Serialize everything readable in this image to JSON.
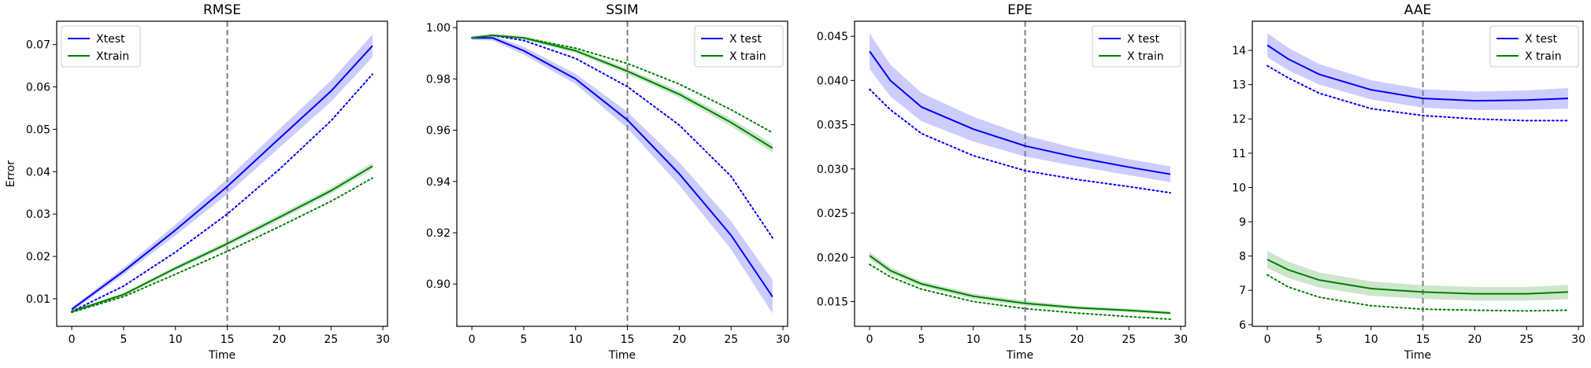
{
  "chart_data": [
    {
      "type": "line",
      "title": "RMSE",
      "xlabel": "Time",
      "ylabel": "Error",
      "xlim": [
        -1.45,
        30.45
      ],
      "ylim": [
        0.0035,
        0.0755
      ],
      "xticks": [
        0,
        5,
        10,
        15,
        20,
        25,
        30
      ],
      "yticks": [
        0.01,
        0.02,
        0.03,
        0.04,
        0.05,
        0.06,
        0.07
      ],
      "ytick_labels": [
        "0.01",
        "0.02",
        "0.03",
        "0.04",
        "0.05",
        "0.06",
        "0.07"
      ],
      "vline": 15,
      "legend_position": "upper-left",
      "legend": [
        {
          "label": "Xtest",
          "color": "#0000ff"
        },
        {
          "label": "Xtrain",
          "color": "#008000"
        }
      ],
      "x": [
        0,
        5,
        10,
        15,
        20,
        25,
        29
      ],
      "series": [
        {
          "style": "solid",
          "color": "#0000ff",
          "values": [
            0.0075,
            0.0165,
            0.0262,
            0.0365,
            0.0478,
            0.059,
            0.0697
          ],
          "band": [
            0.0005,
            0.0008,
            0.0013,
            0.0018,
            0.0022,
            0.0025,
            0.0027
          ]
        },
        {
          "style": "dotted",
          "color": "#0000ff",
          "values": [
            0.007,
            0.013,
            0.021,
            0.03,
            0.0405,
            0.052,
            0.063
          ]
        },
        {
          "style": "solid",
          "color": "#008000",
          "values": [
            0.007,
            0.011,
            0.0172,
            0.023,
            0.0292,
            0.0355,
            0.0413
          ],
          "band": [
            0.0003,
            0.0004,
            0.0005,
            0.0006,
            0.0007,
            0.0007,
            0.0008
          ]
        },
        {
          "style": "dotted",
          "color": "#008000",
          "values": [
            0.0068,
            0.0105,
            0.0158,
            0.0212,
            0.027,
            0.033,
            0.0385
          ]
        }
      ]
    },
    {
      "type": "line",
      "title": "SSIM",
      "xlabel": "Time",
      "ylabel": "",
      "xlim": [
        -1.45,
        30.45
      ],
      "ylim": [
        0.8835,
        1.0025
      ],
      "xticks": [
        0,
        5,
        10,
        15,
        20,
        25,
        30
      ],
      "yticks": [
        0.9,
        0.92,
        0.94,
        0.96,
        0.98,
        1.0
      ],
      "ytick_labels": [
        "0.90",
        "0.92",
        "0.94",
        "0.96",
        "0.98",
        "1.00"
      ],
      "vline": 15,
      "legend_position": "upper-right",
      "legend": [
        {
          "label": "X test",
          "color": "#0000ff"
        },
        {
          "label": "X train",
          "color": "#008000"
        }
      ],
      "x": [
        0,
        2,
        5,
        10,
        15,
        20,
        25,
        29
      ],
      "series": [
        {
          "style": "solid",
          "color": "#0000ff",
          "values": [
            0.996,
            0.996,
            0.991,
            0.98,
            0.964,
            0.943,
            0.919,
            0.895
          ],
          "band": [
            0.0008,
            0.001,
            0.0015,
            0.002,
            0.0032,
            0.0045,
            0.0055,
            0.0065
          ]
        },
        {
          "style": "dotted",
          "color": "#0000ff",
          "values": [
            0.996,
            0.997,
            0.995,
            0.988,
            0.977,
            0.962,
            0.942,
            0.918
          ]
        },
        {
          "style": "solid",
          "color": "#008000",
          "values": [
            0.996,
            0.997,
            0.996,
            0.991,
            0.983,
            0.974,
            0.963,
            0.953
          ],
          "band": [
            0.0005,
            0.0005,
            0.0007,
            0.0009,
            0.0011,
            0.0013,
            0.0015,
            0.0017
          ]
        },
        {
          "style": "dotted",
          "color": "#008000",
          "values": [
            0.996,
            0.997,
            0.996,
            0.992,
            0.986,
            0.978,
            0.968,
            0.959
          ]
        }
      ]
    },
    {
      "type": "line",
      "title": "EPE",
      "xlabel": "Time",
      "ylabel": "",
      "xlim": [
        -1.45,
        30.45
      ],
      "ylim": [
        0.0122,
        0.0467
      ],
      "xticks": [
        0,
        5,
        10,
        15,
        20,
        25,
        30
      ],
      "yticks": [
        0.015,
        0.02,
        0.025,
        0.03,
        0.035,
        0.04,
        0.045
      ],
      "ytick_labels": [
        "0.015",
        "0.020",
        "0.025",
        "0.030",
        "0.035",
        "0.040",
        "0.045"
      ],
      "vline": 15,
      "legend_position": "upper-right",
      "legend": [
        {
          "label": "X test",
          "color": "#0000ff"
        },
        {
          "label": "X train",
          "color": "#008000"
        }
      ],
      "x": [
        0,
        2,
        5,
        10,
        15,
        20,
        25,
        29
      ],
      "series": [
        {
          "style": "solid",
          "color": "#0000ff",
          "values": [
            0.0433,
            0.04,
            0.037,
            0.0345,
            0.0326,
            0.0313,
            0.0302,
            0.0294
          ],
          "band": [
            0.002,
            0.0018,
            0.0016,
            0.0014,
            0.0012,
            0.001,
            0.0009,
            0.0009
          ]
        },
        {
          "style": "dotted",
          "color": "#0000ff",
          "values": [
            0.039,
            0.0367,
            0.034,
            0.0315,
            0.0298,
            0.0288,
            0.028,
            0.0273
          ]
        },
        {
          "style": "solid",
          "color": "#008000",
          "values": [
            0.0202,
            0.0185,
            0.017,
            0.0156,
            0.0148,
            0.0143,
            0.014,
            0.0137
          ],
          "band": [
            0.0004,
            0.0004,
            0.0003,
            0.0003,
            0.0003,
            0.0002,
            0.0002,
            0.0002
          ]
        },
        {
          "style": "dotted",
          "color": "#008000",
          "values": [
            0.0192,
            0.0178,
            0.0164,
            0.015,
            0.0142,
            0.0137,
            0.0133,
            0.013
          ]
        }
      ]
    },
    {
      "type": "line",
      "title": "AAE",
      "xlabel": "Time",
      "ylabel": "",
      "xlim": [
        -1.45,
        30.45
      ],
      "ylim": [
        5.95,
        14.85
      ],
      "xticks": [
        0,
        5,
        10,
        15,
        20,
        25,
        30
      ],
      "yticks": [
        6,
        7,
        8,
        9,
        10,
        11,
        12,
        13,
        14
      ],
      "ytick_labels": [
        "6",
        "7",
        "8",
        "9",
        "10",
        "11",
        "12",
        "13",
        "14"
      ],
      "vline": 15,
      "legend_position": "upper-right",
      "legend": [
        {
          "label": "X test",
          "color": "#0000ff"
        },
        {
          "label": "X train",
          "color": "#008000"
        }
      ],
      "x": [
        0,
        2,
        5,
        10,
        15,
        20,
        25,
        29
      ],
      "series": [
        {
          "style": "solid",
          "color": "#0000ff",
          "values": [
            14.15,
            13.75,
            13.3,
            12.85,
            12.6,
            12.53,
            12.55,
            12.6
          ],
          "band": [
            0.35,
            0.33,
            0.3,
            0.28,
            0.27,
            0.27,
            0.28,
            0.3
          ]
        },
        {
          "style": "dotted",
          "color": "#0000ff",
          "values": [
            13.55,
            13.2,
            12.75,
            12.3,
            12.1,
            12.0,
            11.95,
            11.95
          ]
        },
        {
          "style": "solid",
          "color": "#008000",
          "values": [
            7.9,
            7.6,
            7.3,
            7.05,
            6.95,
            6.9,
            6.9,
            6.95
          ],
          "band": [
            0.25,
            0.24,
            0.22,
            0.21,
            0.2,
            0.2,
            0.2,
            0.21
          ]
        },
        {
          "style": "dotted",
          "color": "#008000",
          "values": [
            7.45,
            7.1,
            6.8,
            6.55,
            6.45,
            6.42,
            6.4,
            6.42
          ]
        }
      ]
    }
  ]
}
